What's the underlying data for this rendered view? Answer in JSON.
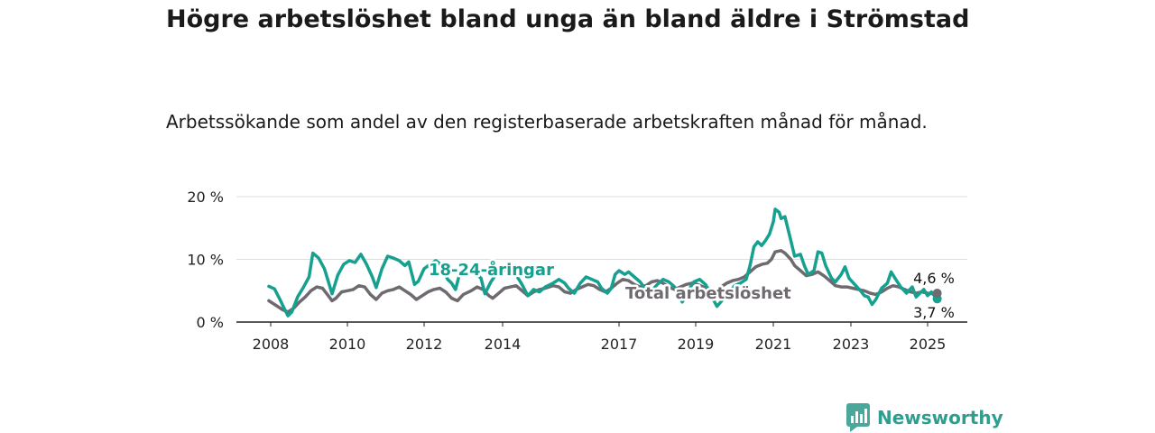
{
  "title": "Högre arbetslöshet bland unga än bland äldre i Strömstad",
  "subtitle": "Arbetssökande som andel av den registerbaserade arbetskraften månad för månad.",
  "brand": {
    "name": "Newsworthy",
    "icon": "newsworthy-logo-icon"
  },
  "colors": {
    "youth": "#16a090",
    "total": "#6e6a70",
    "grid": "#dddddd",
    "axis": "#222222"
  },
  "chart_data": {
    "type": "line",
    "x_ticks": [
      "2008",
      "2010",
      "2012",
      "2014",
      "2017",
      "2019",
      "2021",
      "2023",
      "2025"
    ],
    "y_ticks": [
      "0 %",
      "10 %",
      "20 %"
    ],
    "ylim": [
      0,
      20
    ],
    "xlim": [
      2007.95,
      2025.55
    ],
    "grid": true,
    "series": [
      {
        "name": "18-24-åringar",
        "color": "#16a090",
        "end_label": "3,7 %",
        "points": [
          [
            2007.95,
            5.7
          ],
          [
            2008.1,
            5.3
          ],
          [
            2008.25,
            3.5
          ],
          [
            2008.35,
            2.2
          ],
          [
            2008.45,
            1.0
          ],
          [
            2008.55,
            1.6
          ],
          [
            2008.7,
            4.0
          ],
          [
            2008.85,
            5.5
          ],
          [
            2009.0,
            7.2
          ],
          [
            2009.1,
            11.0
          ],
          [
            2009.25,
            10.2
          ],
          [
            2009.4,
            8.5
          ],
          [
            2009.5,
            6.5
          ],
          [
            2009.6,
            4.5
          ],
          [
            2009.75,
            7.5
          ],
          [
            2009.9,
            9.2
          ],
          [
            2010.05,
            9.8
          ],
          [
            2010.2,
            9.5
          ],
          [
            2010.35,
            10.8
          ],
          [
            2010.5,
            9.2
          ],
          [
            2010.65,
            7.2
          ],
          [
            2010.75,
            5.5
          ],
          [
            2010.9,
            8.5
          ],
          [
            2011.05,
            10.5
          ],
          [
            2011.2,
            10.2
          ],
          [
            2011.35,
            9.8
          ],
          [
            2011.5,
            9.0
          ],
          [
            2011.6,
            9.6
          ],
          [
            2011.75,
            6.0
          ],
          [
            2011.85,
            6.5
          ],
          [
            2012.0,
            8.5
          ],
          [
            2012.15,
            9.2
          ],
          [
            2012.3,
            9.8
          ],
          [
            2012.4,
            9.3
          ],
          [
            2012.5,
            8.0
          ],
          [
            2012.6,
            6.8
          ],
          [
            2012.7,
            6.2
          ],
          [
            2012.8,
            5.2
          ],
          [
            2012.9,
            7.6
          ],
          [
            2013.1,
            8.4
          ],
          [
            2013.3,
            7.8
          ],
          [
            2013.45,
            7.0
          ],
          [
            2013.55,
            4.5
          ],
          [
            2013.7,
            6.4
          ],
          [
            2013.85,
            7.8
          ],
          [
            2014.0,
            8.2
          ],
          [
            2014.15,
            8.6
          ],
          [
            2014.3,
            8.0
          ],
          [
            2014.5,
            6.0
          ],
          [
            2014.65,
            4.2
          ],
          [
            2014.8,
            5.2
          ],
          [
            2014.95,
            4.8
          ],
          [
            2015.1,
            5.6
          ],
          [
            2015.3,
            6.2
          ],
          [
            2015.45,
            6.8
          ],
          [
            2015.6,
            6.2
          ],
          [
            2015.7,
            5.4
          ],
          [
            2015.85,
            4.6
          ],
          [
            2016.0,
            6.2
          ],
          [
            2016.15,
            7.2
          ],
          [
            2016.3,
            6.8
          ],
          [
            2016.45,
            6.4
          ],
          [
            2016.55,
            5.4
          ],
          [
            2016.7,
            4.6
          ],
          [
            2016.8,
            5.4
          ],
          [
            2016.9,
            7.6
          ],
          [
            2017.0,
            8.2
          ],
          [
            2017.15,
            7.6
          ],
          [
            2017.25,
            8.0
          ],
          [
            2017.4,
            7.2
          ],
          [
            2017.55,
            6.4
          ],
          [
            2017.7,
            5.2
          ],
          [
            2017.85,
            5.0
          ],
          [
            2018.0,
            6.0
          ],
          [
            2018.15,
            6.8
          ],
          [
            2018.3,
            6.4
          ],
          [
            2018.45,
            5.6
          ],
          [
            2018.55,
            4.4
          ],
          [
            2018.65,
            3.2
          ],
          [
            2018.8,
            5.0
          ],
          [
            2018.95,
            6.4
          ],
          [
            2019.1,
            6.8
          ],
          [
            2019.25,
            6.0
          ],
          [
            2019.35,
            5.0
          ],
          [
            2019.45,
            3.6
          ],
          [
            2019.55,
            2.5
          ],
          [
            2019.7,
            3.6
          ],
          [
            2019.85,
            4.6
          ],
          [
            2020.0,
            5.8
          ],
          [
            2020.15,
            6.2
          ],
          [
            2020.3,
            6.8
          ],
          [
            2020.4,
            9.0
          ],
          [
            2020.5,
            12.0
          ],
          [
            2020.6,
            12.8
          ],
          [
            2020.7,
            12.2
          ],
          [
            2020.8,
            13.0
          ],
          [
            2020.9,
            14.0
          ],
          [
            2021.0,
            16.0
          ],
          [
            2021.05,
            18.0
          ],
          [
            2021.15,
            17.5
          ],
          [
            2021.2,
            16.5
          ],
          [
            2021.3,
            16.8
          ],
          [
            2021.45,
            13.0
          ],
          [
            2021.55,
            10.5
          ],
          [
            2021.7,
            10.8
          ],
          [
            2021.8,
            9.0
          ],
          [
            2021.9,
            7.6
          ],
          [
            2022.05,
            8.2
          ],
          [
            2022.15,
            11.2
          ],
          [
            2022.25,
            11.0
          ],
          [
            2022.35,
            9.0
          ],
          [
            2022.5,
            7.0
          ],
          [
            2022.6,
            6.4
          ],
          [
            2022.75,
            7.6
          ],
          [
            2022.85,
            8.8
          ],
          [
            2022.95,
            7.0
          ],
          [
            2023.1,
            6.0
          ],
          [
            2023.25,
            5.0
          ],
          [
            2023.35,
            4.2
          ],
          [
            2023.45,
            4.0
          ],
          [
            2023.55,
            2.8
          ],
          [
            2023.65,
            3.6
          ],
          [
            2023.8,
            5.4
          ],
          [
            2023.95,
            6.2
          ],
          [
            2024.05,
            8.0
          ],
          [
            2024.15,
            7.0
          ],
          [
            2024.3,
            5.6
          ],
          [
            2024.45,
            4.6
          ],
          [
            2024.6,
            5.6
          ],
          [
            2024.7,
            4.0
          ],
          [
            2024.8,
            4.6
          ],
          [
            2024.9,
            5.2
          ],
          [
            2025.0,
            4.2
          ],
          [
            2025.1,
            4.8
          ],
          [
            2025.2,
            4.0
          ],
          [
            2025.25,
            3.7
          ]
        ]
      },
      {
        "name": "Total arbetslöshet",
        "color": "#6e6a70",
        "end_label": "4,6 %",
        "points": [
          [
            2007.95,
            3.4
          ],
          [
            2008.15,
            2.6
          ],
          [
            2008.3,
            2.0
          ],
          [
            2008.45,
            1.6
          ],
          [
            2008.6,
            2.2
          ],
          [
            2008.75,
            3.2
          ],
          [
            2008.9,
            4.0
          ],
          [
            2009.05,
            5.0
          ],
          [
            2009.2,
            5.6
          ],
          [
            2009.35,
            5.4
          ],
          [
            2009.5,
            4.2
          ],
          [
            2009.6,
            3.4
          ],
          [
            2009.7,
            3.8
          ],
          [
            2009.85,
            4.8
          ],
          [
            2010.0,
            5.0
          ],
          [
            2010.15,
            5.2
          ],
          [
            2010.3,
            5.8
          ],
          [
            2010.45,
            5.6
          ],
          [
            2010.6,
            4.4
          ],
          [
            2010.75,
            3.6
          ],
          [
            2010.9,
            4.6
          ],
          [
            2011.05,
            5.0
          ],
          [
            2011.2,
            5.2
          ],
          [
            2011.35,
            5.6
          ],
          [
            2011.5,
            5.0
          ],
          [
            2011.65,
            4.4
          ],
          [
            2011.8,
            3.6
          ],
          [
            2011.95,
            4.2
          ],
          [
            2012.1,
            4.8
          ],
          [
            2012.25,
            5.2
          ],
          [
            2012.4,
            5.4
          ],
          [
            2012.55,
            4.8
          ],
          [
            2012.7,
            3.8
          ],
          [
            2012.85,
            3.4
          ],
          [
            2013.0,
            4.4
          ],
          [
            2013.2,
            5.0
          ],
          [
            2013.35,
            5.6
          ],
          [
            2013.5,
            5.2
          ],
          [
            2013.65,
            4.2
          ],
          [
            2013.75,
            3.8
          ],
          [
            2013.9,
            4.6
          ],
          [
            2014.05,
            5.4
          ],
          [
            2014.2,
            5.6
          ],
          [
            2014.35,
            5.8
          ],
          [
            2014.5,
            5.0
          ],
          [
            2014.65,
            4.2
          ],
          [
            2014.8,
            4.8
          ],
          [
            2014.95,
            5.2
          ],
          [
            2015.1,
            5.4
          ],
          [
            2015.3,
            5.8
          ],
          [
            2015.45,
            5.6
          ],
          [
            2015.6,
            4.8
          ],
          [
            2015.75,
            4.6
          ],
          [
            2015.9,
            5.2
          ],
          [
            2016.05,
            5.6
          ],
          [
            2016.2,
            6.0
          ],
          [
            2016.35,
            5.8
          ],
          [
            2016.5,
            5.2
          ],
          [
            2016.65,
            4.8
          ],
          [
            2016.8,
            5.4
          ],
          [
            2016.95,
            6.2
          ],
          [
            2017.1,
            6.8
          ],
          [
            2017.25,
            6.6
          ],
          [
            2017.4,
            6.0
          ],
          [
            2017.55,
            5.6
          ],
          [
            2017.7,
            5.8
          ],
          [
            2017.85,
            6.4
          ],
          [
            2018.0,
            6.6
          ],
          [
            2018.15,
            6.2
          ],
          [
            2018.3,
            5.6
          ],
          [
            2018.45,
            5.2
          ],
          [
            2018.6,
            5.6
          ],
          [
            2018.75,
            6.0
          ],
          [
            2018.9,
            6.2
          ],
          [
            2019.05,
            6.0
          ],
          [
            2019.2,
            5.6
          ],
          [
            2019.35,
            5.2
          ],
          [
            2019.5,
            5.0
          ],
          [
            2019.65,
            5.6
          ],
          [
            2019.8,
            6.2
          ],
          [
            2019.95,
            6.6
          ],
          [
            2020.1,
            6.8
          ],
          [
            2020.25,
            7.2
          ],
          [
            2020.4,
            8.0
          ],
          [
            2020.55,
            8.8
          ],
          [
            2020.7,
            9.2
          ],
          [
            2020.85,
            9.4
          ],
          [
            2020.95,
            10.0
          ],
          [
            2021.05,
            11.2
          ],
          [
            2021.2,
            11.4
          ],
          [
            2021.3,
            11.0
          ],
          [
            2021.45,
            10.0
          ],
          [
            2021.55,
            9.0
          ],
          [
            2021.7,
            8.2
          ],
          [
            2021.85,
            7.4
          ],
          [
            2022.0,
            7.6
          ],
          [
            2022.15,
            8.0
          ],
          [
            2022.3,
            7.4
          ],
          [
            2022.45,
            6.6
          ],
          [
            2022.6,
            5.8
          ],
          [
            2022.75,
            5.6
          ],
          [
            2022.9,
            5.6
          ],
          [
            2023.05,
            5.4
          ],
          [
            2023.2,
            5.2
          ],
          [
            2023.35,
            5.0
          ],
          [
            2023.5,
            4.6
          ],
          [
            2023.65,
            4.4
          ],
          [
            2023.8,
            4.8
          ],
          [
            2023.95,
            5.4
          ],
          [
            2024.1,
            5.8
          ],
          [
            2024.25,
            5.6
          ],
          [
            2024.4,
            5.2
          ],
          [
            2024.55,
            4.8
          ],
          [
            2024.7,
            4.6
          ],
          [
            2024.85,
            4.8
          ],
          [
            2025.0,
            4.6
          ],
          [
            2025.15,
            4.5
          ],
          [
            2025.25,
            4.6
          ]
        ]
      }
    ],
    "annotations": [
      {
        "text": "18-24-åringar",
        "series": 0
      },
      {
        "text": "Total arbetslöshet",
        "series": 1
      }
    ]
  }
}
